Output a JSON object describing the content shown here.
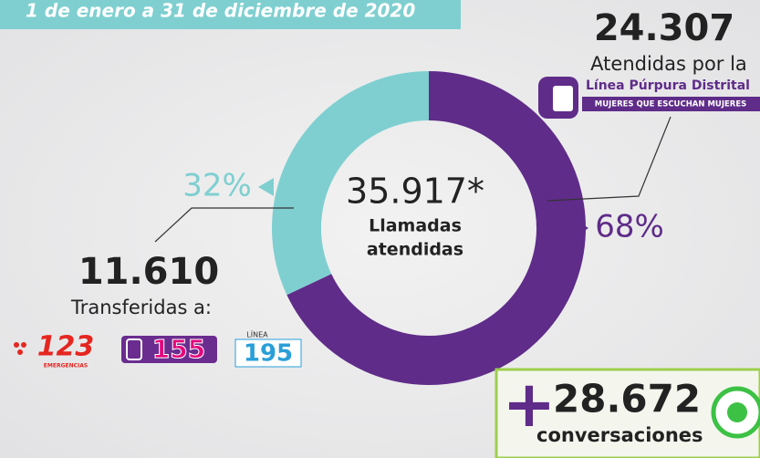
{
  "chart_data": {
    "type": "pie",
    "subtitle": "1 de enero a 31 de diciembre de 2020",
    "values": [
      68,
      32
    ],
    "value_labels": [
      "68%",
      "32%"
    ],
    "colors": [
      "#5f2c89",
      "#7fcfd0"
    ],
    "center_total": "35.917*",
    "center_label": [
      "Llamadas",
      "atendidas"
    ]
  },
  "purple_line": {
    "total": "24.307",
    "caption": "Atendidas por la",
    "name": "Línea Púrpura Distrital",
    "slogan": "MUJERES QUE ESCUCHAN MUJERES"
  },
  "transfers": {
    "total": "11.610",
    "caption": "Transferidas a:",
    "lines": [
      {
        "number": "123",
        "caption": "EMERGENCIAS"
      },
      {
        "number": "155"
      },
      {
        "prefix": "LÍNEA",
        "number": "195"
      }
    ]
  },
  "whatsapp": {
    "plus": "+",
    "total": "28.672",
    "caption": "conversaciones"
  }
}
